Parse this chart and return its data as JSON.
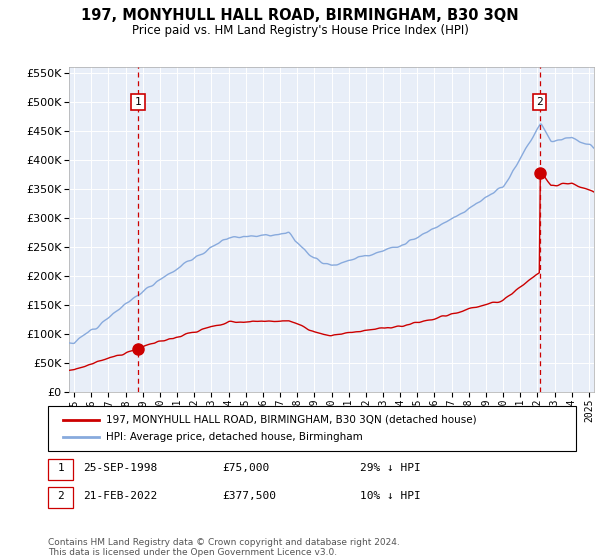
{
  "title": "197, MONYHULL HALL ROAD, BIRMINGHAM, B30 3QN",
  "subtitle": "Price paid vs. HM Land Registry's House Price Index (HPI)",
  "legend_line1": "197, MONYHULL HALL ROAD, BIRMINGHAM, B30 3QN (detached house)",
  "legend_line2": "HPI: Average price, detached house, Birmingham",
  "footnote": "Contains HM Land Registry data © Crown copyright and database right 2024.\nThis data is licensed under the Open Government Licence v3.0.",
  "sale1_date": "25-SEP-1998",
  "sale1_price": 75000,
  "sale1_label": "29% ↓ HPI",
  "sale1_year": 1998.73,
  "sale2_date": "21-FEB-2022",
  "sale2_price": 377500,
  "sale2_label": "10% ↓ HPI",
  "sale2_year": 2022.13,
  "ylim": [
    0,
    560000
  ],
  "yticks": [
    0,
    50000,
    100000,
    150000,
    200000,
    250000,
    300000,
    350000,
    400000,
    450000,
    500000,
    550000
  ],
  "xlim_start": 1994.7,
  "xlim_end": 2025.3,
  "red_color": "#cc0000",
  "blue_color": "#88aadd",
  "plot_bg": "#e8eef8",
  "grid_color": "#ffffff"
}
